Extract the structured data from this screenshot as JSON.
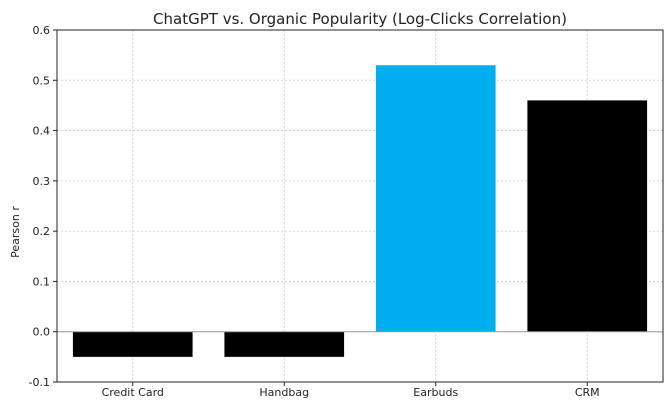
{
  "chart_data": {
    "type": "bar",
    "title": "ChatGPT vs. Organic Popularity (Log-Clicks Correlation)",
    "xlabel": "",
    "ylabel": "Pearson r",
    "categories": [
      "Credit Card",
      "Handbag",
      "Earbuds",
      "CRM"
    ],
    "values": [
      -0.05,
      -0.05,
      0.53,
      0.46
    ],
    "colors": [
      "#000000",
      "#000000",
      "#00aeef",
      "#000000"
    ],
    "ylim": [
      -0.1,
      0.6
    ],
    "yticks": [
      "-0.1",
      "0.0",
      "0.1",
      "0.2",
      "0.3",
      "0.4",
      "0.5",
      "0.6"
    ],
    "grid": true,
    "legend": "none"
  }
}
